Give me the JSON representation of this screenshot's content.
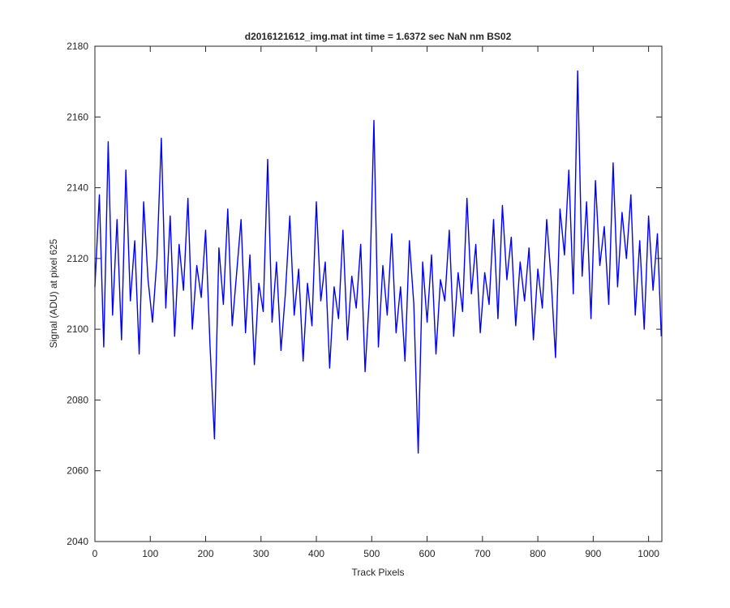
{
  "chart_data": {
    "type": "line",
    "title": "d2016121612_img.mat int time = 1.6372 sec  NaN nm BS02",
    "xlabel": "Track Pixels",
    "ylabel": "Signal (ADU) at pixel 625",
    "xlim": [
      0,
      1024
    ],
    "ylim": [
      2040,
      2180
    ],
    "xticks": [
      0,
      100,
      200,
      300,
      400,
      500,
      600,
      700,
      800,
      900,
      1000
    ],
    "yticks": [
      2040,
      2060,
      2080,
      2100,
      2120,
      2140,
      2160,
      2180
    ],
    "grid": false,
    "legend": "none",
    "line_color": "#0000ff",
    "series": [
      {
        "x": [
          0,
          8,
          16,
          24,
          32,
          40,
          48,
          56,
          64,
          72,
          80,
          88,
          96,
          104,
          112,
          120,
          128,
          136,
          144,
          152,
          160,
          168,
          176,
          184,
          192,
          200,
          208,
          216,
          224,
          232,
          240,
          248,
          256,
          264,
          272,
          280,
          288,
          296,
          304,
          312,
          320,
          328,
          336,
          344,
          352,
          360,
          368,
          376,
          384,
          392,
          400,
          408,
          416,
          424,
          432,
          440,
          448,
          456,
          464,
          472,
          480,
          488,
          496,
          504,
          512,
          520,
          528,
          536,
          544,
          552,
          560,
          568,
          576,
          584,
          592,
          600,
          608,
          616,
          624,
          632,
          640,
          648,
          656,
          664,
          672,
          680,
          688,
          696,
          704,
          712,
          720,
          728,
          736,
          744,
          752,
          760,
          768,
          776,
          784,
          792,
          800,
          808,
          816,
          824,
          832,
          840,
          848,
          856,
          864,
          872,
          880,
          888,
          896,
          904,
          912,
          920,
          928,
          936,
          944,
          952,
          960,
          968,
          976,
          984,
          992,
          1000,
          1008,
          1016,
          1023
        ],
        "y": [
          2112,
          2138,
          2095,
          2153,
          2104,
          2131,
          2097,
          2145,
          2108,
          2125,
          2093,
          2136,
          2114,
          2102,
          2120,
          2154,
          2106,
          2132,
          2098,
          2124,
          2111,
          2137,
          2100,
          2118,
          2109,
          2128,
          2095,
          2069,
          2123,
          2107,
          2134,
          2101,
          2116,
          2131,
          2099,
          2121,
          2090,
          2113,
          2105,
          2148,
          2102,
          2119,
          2094,
          2110,
          2132,
          2104,
          2117,
          2091,
          2113,
          2101,
          2136,
          2108,
          2119,
          2089,
          2112,
          2103,
          2128,
          2097,
          2115,
          2106,
          2124,
          2088,
          2110,
          2159,
          2095,
          2118,
          2104,
          2127,
          2099,
          2112,
          2091,
          2125,
          2107,
          2065,
          2119,
          2102,
          2121,
          2093,
          2114,
          2108,
          2128,
          2098,
          2116,
          2105,
          2137,
          2110,
          2124,
          2099,
          2116,
          2107,
          2131,
          2103,
          2135,
          2114,
          2126,
          2101,
          2119,
          2108,
          2123,
          2097,
          2117,
          2106,
          2131,
          2114,
          2092,
          2134,
          2121,
          2145,
          2110,
          2173,
          2115,
          2136,
          2103,
          2142,
          2118,
          2129,
          2107,
          2147,
          2112,
          2133,
          2120,
          2138,
          2104,
          2125,
          2100,
          2132,
          2111,
          2127,
          2098
        ]
      }
    ]
  }
}
